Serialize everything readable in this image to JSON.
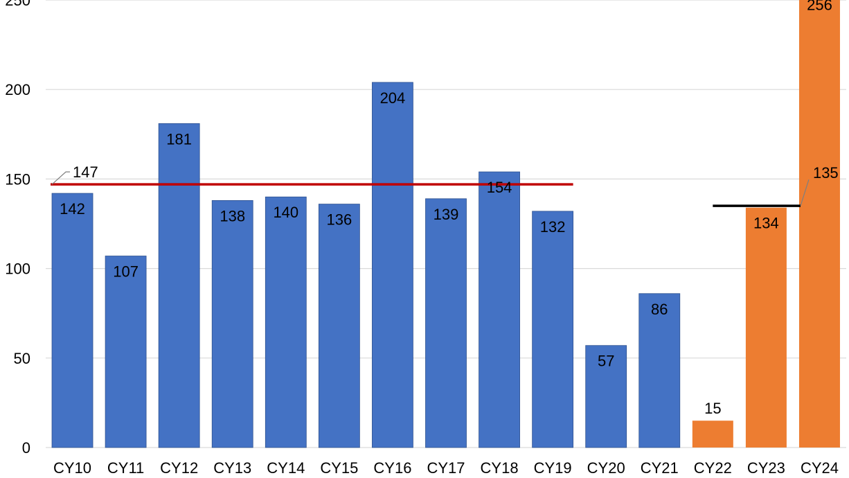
{
  "chart_data": {
    "type": "bar",
    "categories": [
      "CY10",
      "CY11",
      "CY12",
      "CY13",
      "CY14",
      "CY15",
      "CY16",
      "CY17",
      "CY18",
      "CY19",
      "CY20",
      "CY21",
      "CY22",
      "CY23",
      "CY24"
    ],
    "values": [
      142,
      107,
      181,
      138,
      140,
      136,
      204,
      139,
      154,
      132,
      57,
      86,
      15,
      134,
      256
    ],
    "colors": [
      "#4472c4",
      "#4472c4",
      "#4472c4",
      "#4472c4",
      "#4472c4",
      "#4472c4",
      "#4472c4",
      "#4472c4",
      "#4472c4",
      "#4472c4",
      "#4472c4",
      "#4472c4",
      "#ed7d31",
      "#ed7d31",
      "#ed7d31"
    ],
    "yticks": [
      0,
      50,
      100,
      150,
      200,
      250
    ],
    "ylim": [
      0,
      250
    ],
    "grid": true,
    "title": "",
    "xlabel": "",
    "ylabel": "",
    "reference_lines": [
      {
        "value": 147,
        "label": "147",
        "from_category": "CY10",
        "to_category": "CY19",
        "color": "#c00000"
      },
      {
        "value": 135,
        "label": "135",
        "from_category": "CY22",
        "to_category": "CY24",
        "color": "#000000"
      }
    ]
  }
}
